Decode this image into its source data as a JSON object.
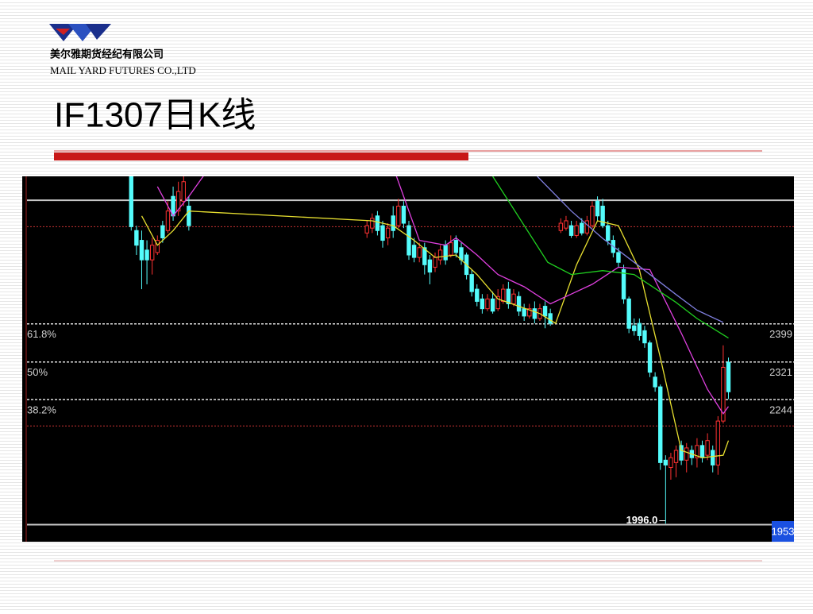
{
  "header": {
    "company_cn": "美尔雅期货经纪有限公司",
    "company_en": "MAIL YARD FUTURES CO.,LTD",
    "title": "IF1307日K线"
  },
  "chart_data": {
    "type": "candlestick",
    "xlim": [
      0,
      147
    ],
    "ylim": [
      1953,
      2701
    ],
    "yticks": [
      1953
    ],
    "up_color": "#ff3232",
    "down_color": "#54fcfc",
    "levels": [
      {
        "ratio": "61.8%",
        "price": 2399
      },
      {
        "ratio": "50%",
        "price": 2321
      },
      {
        "ratio": "38.2%",
        "price": 2244
      }
    ],
    "reference_lines": [
      {
        "value": 2652,
        "color": "#c8c8c8",
        "style": "solid"
      },
      {
        "value": 1988,
        "color": "#c8c8c8",
        "style": "solid"
      },
      {
        "value": 2598,
        "color": "#c83232",
        "style": "dotted"
      },
      {
        "value": 2190,
        "color": "#c83232",
        "style": "dotted"
      }
    ],
    "low_label": {
      "value": 1996,
      "label": "1996.0"
    },
    "candles": [
      {
        "x": 20,
        "open": 2701,
        "high": 2701,
        "low": 2590,
        "close": 2598
      },
      {
        "x": 21,
        "open": 2590,
        "high": 2600,
        "low": 2540,
        "close": 2560
      },
      {
        "x": 22,
        "open": 2570,
        "high": 2590,
        "low": 2470,
        "close": 2530
      },
      {
        "x": 23,
        "open": 2550,
        "high": 2570,
        "low": 2480,
        "close": 2530
      },
      {
        "x": 24,
        "open": 2530,
        "high": 2575,
        "low": 2500,
        "close": 2560
      },
      {
        "x": 25,
        "open": 2545,
        "high": 2580,
        "low": 2540,
        "close": 2570
      },
      {
        "x": 26,
        "open": 2600,
        "high": 2610,
        "low": 2565,
        "close": 2575
      },
      {
        "x": 27,
        "open": 2590,
        "high": 2650,
        "low": 2585,
        "close": 2630
      },
      {
        "x": 28,
        "open": 2660,
        "high": 2680,
        "low": 2610,
        "close": 2620
      },
      {
        "x": 29,
        "open": 2630,
        "high": 2690,
        "low": 2620,
        "close": 2670
      },
      {
        "x": 30,
        "open": 2650,
        "high": 2701,
        "low": 2640,
        "close": 2690
      },
      {
        "x": 31,
        "open": 2640,
        "high": 2660,
        "low": 2590,
        "close": 2600
      },
      {
        "x": 65,
        "open": 2585,
        "high": 2610,
        "low": 2575,
        "close": 2600
      },
      {
        "x": 66,
        "open": 2595,
        "high": 2625,
        "low": 2585,
        "close": 2615
      },
      {
        "x": 67,
        "open": 2620,
        "high": 2630,
        "low": 2580,
        "close": 2590
      },
      {
        "x": 68,
        "open": 2600,
        "high": 2610,
        "low": 2555,
        "close": 2570
      },
      {
        "x": 69,
        "open": 2575,
        "high": 2605,
        "low": 2560,
        "close": 2595
      },
      {
        "x": 70,
        "open": 2620,
        "high": 2640,
        "low": 2575,
        "close": 2590
      },
      {
        "x": 71,
        "open": 2600,
        "high": 2655,
        "low": 2595,
        "close": 2640
      },
      {
        "x": 72,
        "open": 2640,
        "high": 2650,
        "low": 2595,
        "close": 2605
      },
      {
        "x": 73,
        "open": 2600,
        "high": 2610,
        "low": 2530,
        "close": 2540
      },
      {
        "x": 74,
        "open": 2560,
        "high": 2575,
        "low": 2525,
        "close": 2535
      },
      {
        "x": 75,
        "open": 2535,
        "high": 2565,
        "low": 2525,
        "close": 2555
      },
      {
        "x": 76,
        "open": 2555,
        "high": 2565,
        "low": 2500,
        "close": 2520
      },
      {
        "x": 77,
        "open": 2530,
        "high": 2540,
        "low": 2480,
        "close": 2505
      },
      {
        "x": 78,
        "open": 2515,
        "high": 2545,
        "low": 2505,
        "close": 2535
      },
      {
        "x": 79,
        "open": 2530,
        "high": 2560,
        "low": 2520,
        "close": 2550
      },
      {
        "x": 80,
        "open": 2560,
        "high": 2570,
        "low": 2520,
        "close": 2530
      },
      {
        "x": 81,
        "open": 2540,
        "high": 2580,
        "low": 2535,
        "close": 2565
      },
      {
        "x": 82,
        "open": 2570,
        "high": 2580,
        "low": 2535,
        "close": 2545
      },
      {
        "x": 83,
        "open": 2555,
        "high": 2565,
        "low": 2520,
        "close": 2530
      },
      {
        "x": 84,
        "open": 2540,
        "high": 2545,
        "low": 2490,
        "close": 2500
      },
      {
        "x": 85,
        "open": 2500,
        "high": 2510,
        "low": 2455,
        "close": 2465
      },
      {
        "x": 86,
        "open": 2470,
        "high": 2480,
        "low": 2435,
        "close": 2445
      },
      {
        "x": 87,
        "open": 2450,
        "high": 2460,
        "low": 2420,
        "close": 2430
      },
      {
        "x": 88,
        "open": 2430,
        "high": 2460,
        "low": 2425,
        "close": 2450
      },
      {
        "x": 89,
        "open": 2450,
        "high": 2465,
        "low": 2420,
        "close": 2425
      },
      {
        "x": 90,
        "open": 2430,
        "high": 2470,
        "low": 2425,
        "close": 2455
      },
      {
        "x": 91,
        "open": 2445,
        "high": 2480,
        "low": 2440,
        "close": 2470
      },
      {
        "x": 92,
        "open": 2470,
        "high": 2485,
        "low": 2430,
        "close": 2440
      },
      {
        "x": 93,
        "open": 2440,
        "high": 2470,
        "low": 2435,
        "close": 2460
      },
      {
        "x": 94,
        "open": 2455,
        "high": 2465,
        "low": 2415,
        "close": 2425
      },
      {
        "x": 95,
        "open": 2430,
        "high": 2440,
        "low": 2405,
        "close": 2415
      },
      {
        "x": 96,
        "open": 2415,
        "high": 2440,
        "low": 2410,
        "close": 2430
      },
      {
        "x": 97,
        "open": 2430,
        "high": 2445,
        "low": 2400,
        "close": 2410
      },
      {
        "x": 98,
        "open": 2410,
        "high": 2440,
        "low": 2405,
        "close": 2430
      },
      {
        "x": 99,
        "open": 2435,
        "high": 2445,
        "low": 2390,
        "close": 2415
      },
      {
        "x": 100,
        "open": 2420,
        "high": 2430,
        "low": 2395,
        "close": 2400
      },
      {
        "x": 102,
        "open": 2590,
        "high": 2615,
        "low": 2585,
        "close": 2605
      },
      {
        "x": 103,
        "open": 2595,
        "high": 2620,
        "low": 2590,
        "close": 2610
      },
      {
        "x": 104,
        "open": 2600,
        "high": 2610,
        "low": 2575,
        "close": 2580
      },
      {
        "x": 105,
        "open": 2580,
        "high": 2610,
        "low": 2575,
        "close": 2600
      },
      {
        "x": 106,
        "open": 2605,
        "high": 2615,
        "low": 2580,
        "close": 2585
      },
      {
        "x": 107,
        "open": 2585,
        "high": 2620,
        "low": 2580,
        "close": 2610
      },
      {
        "x": 108,
        "open": 2600,
        "high": 2650,
        "low": 2595,
        "close": 2640
      },
      {
        "x": 109,
        "open": 2650,
        "high": 2660,
        "low": 2610,
        "close": 2620
      },
      {
        "x": 110,
        "open": 2640,
        "high": 2655,
        "low": 2595,
        "close": 2600
      },
      {
        "x": 111,
        "open": 2600,
        "high": 2610,
        "low": 2560,
        "close": 2570
      },
      {
        "x": 112,
        "open": 2570,
        "high": 2580,
        "low": 2535,
        "close": 2545
      },
      {
        "x": 113,
        "open": 2545,
        "high": 2555,
        "low": 2515,
        "close": 2525
      },
      {
        "x": 114,
        "open": 2510,
        "high": 2520,
        "low": 2440,
        "close": 2450
      },
      {
        "x": 115,
        "open": 2450,
        "high": 2455,
        "low": 2380,
        "close": 2390
      },
      {
        "x": 116,
        "open": 2395,
        "high": 2410,
        "low": 2375,
        "close": 2385
      },
      {
        "x": 117,
        "open": 2400,
        "high": 2410,
        "low": 2365,
        "close": 2375
      },
      {
        "x": 118,
        "open": 2385,
        "high": 2395,
        "low": 2350,
        "close": 2360
      },
      {
        "x": 119,
        "open": 2360,
        "high": 2365,
        "low": 2290,
        "close": 2300
      },
      {
        "x": 120,
        "open": 2290,
        "high": 2300,
        "low": 2260,
        "close": 2270
      },
      {
        "x": 121,
        "open": 2270,
        "high": 2275,
        "low": 2100,
        "close": 2115
      },
      {
        "x": 122,
        "open": 2120,
        "high": 2130,
        "low": 1990,
        "close": 2110
      },
      {
        "x": 123,
        "open": 2105,
        "high": 2135,
        "low": 2080,
        "close": 2125
      },
      {
        "x": 124,
        "open": 2115,
        "high": 2150,
        "low": 2085,
        "close": 2140
      },
      {
        "x": 125,
        "open": 2150,
        "high": 2160,
        "low": 2110,
        "close": 2120
      },
      {
        "x": 126,
        "open": 2120,
        "high": 2155,
        "low": 2095,
        "close": 2145
      },
      {
        "x": 127,
        "open": 2140,
        "high": 2150,
        "low": 2110,
        "close": 2125
      },
      {
        "x": 128,
        "open": 2125,
        "high": 2165,
        "low": 2105,
        "close": 2150
      },
      {
        "x": 129,
        "open": 2150,
        "high": 2160,
        "low": 2115,
        "close": 2125
      },
      {
        "x": 130,
        "open": 2130,
        "high": 2175,
        "low": 2120,
        "close": 2160
      },
      {
        "x": 131,
        "open": 2140,
        "high": 2150,
        "low": 2095,
        "close": 2110
      },
      {
        "x": 132,
        "open": 2110,
        "high": 2210,
        "low": 2090,
        "close": 2200
      },
      {
        "x": 133,
        "open": 2200,
        "high": 2355,
        "low": 2195,
        "close": 2310
      },
      {
        "x": 134,
        "open": 2320,
        "high": 2330,
        "low": 2245,
        "close": 2260
      }
    ],
    "series": [
      {
        "color": "#e8e030",
        "x": [
          22,
          25,
          28,
          31,
          66,
          70,
          74,
          78,
          82,
          86,
          90,
          94,
          98,
          101,
          105,
          109,
          113,
          117,
          121,
          125,
          129,
          133,
          134
        ],
        "values": [
          2620,
          2560,
          2590,
          2630,
          2610,
          2600,
          2570,
          2535,
          2540,
          2500,
          2450,
          2435,
          2420,
          2400,
          2520,
          2610,
          2600,
          2510,
          2330,
          2140,
          2125,
          2130,
          2160
        ]
      },
      {
        "color": "#e040e0",
        "x": [
          25,
          28,
          31,
          35,
          70,
          75,
          80,
          82,
          86,
          90,
          95,
          100,
          104,
          108,
          113,
          119,
          125,
          130,
          133,
          134
        ],
        "values": [
          2680,
          2620,
          2660,
          2720,
          2720,
          2570,
          2560,
          2575,
          2540,
          2500,
          2475,
          2440,
          2460,
          2480,
          2515,
          2510,
          2380,
          2265,
          2215,
          2230
        ]
      },
      {
        "color": "#20d020",
        "x": [
          89,
          99.5,
          104,
          110,
          116,
          124,
          128,
          134
        ],
        "values": [
          2701,
          2525,
          2500,
          2508,
          2500,
          2443,
          2410,
          2370
        ]
      },
      {
        "color": "#8080e0",
        "x": [
          97.5,
          104,
          110,
          116,
          124,
          128,
          133
        ],
        "values": [
          2701,
          2630,
          2574,
          2525,
          2459,
          2427,
          2402
        ]
      }
    ]
  }
}
